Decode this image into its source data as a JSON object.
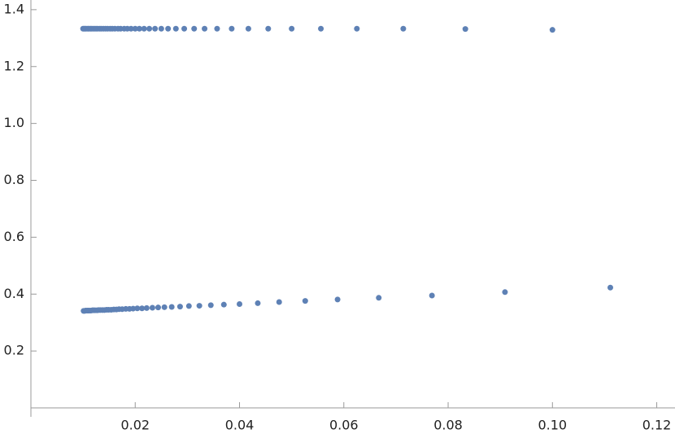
{
  "chart_data": {
    "type": "scatter",
    "series": [
      {
        "color": "#5e81b5",
        "x": [
          0.1,
          0.0833,
          0.0714,
          0.0625,
          0.0556,
          0.05,
          0.0455,
          0.0417,
          0.0385,
          0.0357,
          0.0333,
          0.0313,
          0.0294,
          0.0278,
          0.0263,
          0.025,
          0.0238,
          0.0227,
          0.0217,
          0.0208,
          0.02,
          0.0192,
          0.0185,
          0.0179,
          0.0172,
          0.0167,
          0.0161,
          0.0156,
          0.0152,
          0.0147,
          0.0143,
          0.0139,
          0.0135,
          0.0132,
          0.0128,
          0.0125,
          0.0122,
          0.0119,
          0.0116,
          0.0114,
          0.0111,
          0.0109,
          0.0106,
          0.0104,
          0.0102,
          0.01
        ],
        "values": [
          1.329,
          1.332,
          1.333,
          1.333,
          1.333,
          1.333,
          1.333,
          1.333,
          1.333,
          1.333,
          1.333,
          1.333,
          1.333,
          1.333,
          1.333,
          1.333,
          1.333,
          1.333,
          1.333,
          1.333,
          1.333,
          1.333,
          1.333,
          1.333,
          1.333,
          1.333,
          1.333,
          1.333,
          1.333,
          1.333,
          1.333,
          1.333,
          1.333,
          1.333,
          1.333,
          1.333,
          1.333,
          1.333,
          1.333,
          1.333,
          1.333,
          1.333,
          1.333,
          1.333,
          1.333,
          1.333
        ]
      },
      {
        "color": "#5e81b5",
        "x": [
          0.1111,
          0.0909,
          0.0769,
          0.0667,
          0.0588,
          0.0526,
          0.0476,
          0.0435,
          0.04,
          0.037,
          0.0345,
          0.0323,
          0.0303,
          0.0286,
          0.027,
          0.0256,
          0.0244,
          0.0233,
          0.0222,
          0.0213,
          0.0204,
          0.0196,
          0.0189,
          0.0182,
          0.0175,
          0.0169,
          0.0164,
          0.0159,
          0.0154,
          0.0149,
          0.0145,
          0.0141,
          0.0137,
          0.0133,
          0.013,
          0.0127,
          0.0123,
          0.012,
          0.0118,
          0.0115,
          0.0112,
          0.011,
          0.0108,
          0.0105,
          0.0103,
          0.0101
        ],
        "values": [
          0.423,
          0.407,
          0.395,
          0.387,
          0.381,
          0.376,
          0.372,
          0.368,
          0.365,
          0.363,
          0.361,
          0.359,
          0.358,
          0.356,
          0.355,
          0.354,
          0.353,
          0.352,
          0.351,
          0.35,
          0.35,
          0.349,
          0.348,
          0.348,
          0.347,
          0.347,
          0.346,
          0.346,
          0.345,
          0.345,
          0.345,
          0.344,
          0.344,
          0.344,
          0.344,
          0.343,
          0.343,
          0.343,
          0.343,
          0.342,
          0.342,
          0.342,
          0.342,
          0.342,
          0.341,
          0.341
        ]
      }
    ],
    "xlim": [
      0,
      0.1235
    ],
    "ylim": [
      0,
      1.434
    ],
    "xticks": [
      0.02,
      0.04,
      0.06,
      0.08,
      {
        "value": 0.1,
        "label": "0.10"
      },
      0.12
    ],
    "yticks": [
      0.2,
      0.4,
      0.6,
      0.8,
      {
        "value": 1,
        "label": "1.0"
      },
      1.2,
      1.4
    ]
  }
}
